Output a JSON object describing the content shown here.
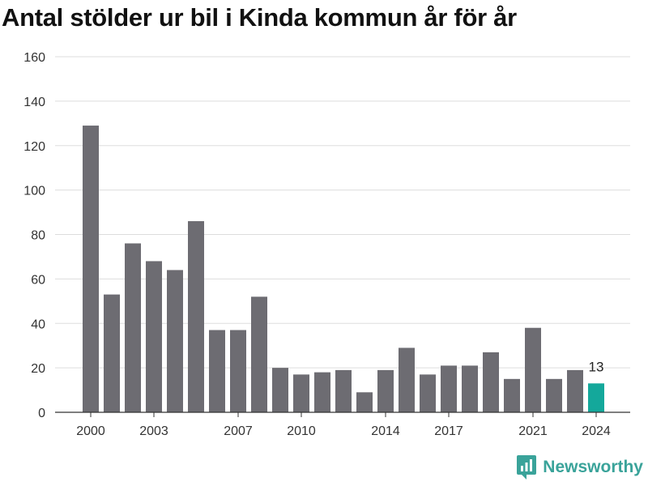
{
  "chart_data": {
    "type": "bar",
    "title": "Antal stölder ur bil i Kinda kommun år för år",
    "xlabel": "",
    "ylabel": "",
    "categories": [
      "2000",
      "2001",
      "2002",
      "2003",
      "2004",
      "2005",
      "2006",
      "2007",
      "2008",
      "2009",
      "2010",
      "2011",
      "2012",
      "2013",
      "2014",
      "2015",
      "2016",
      "2017",
      "2018",
      "2019",
      "2020",
      "2021",
      "2022",
      "2023",
      "2024"
    ],
    "values": [
      129,
      53,
      76,
      68,
      64,
      86,
      37,
      37,
      52,
      20,
      17,
      18,
      19,
      9,
      19,
      29,
      17,
      21,
      21,
      27,
      15,
      38,
      15,
      19,
      13
    ],
    "x_tick_labels": [
      "2000",
      "2003",
      "2007",
      "2010",
      "2014",
      "2017",
      "2021",
      "2024"
    ],
    "y_ticks": [
      "0",
      "20",
      "40",
      "60",
      "80",
      "100",
      "120",
      "140",
      "160"
    ],
    "ylim": [
      0,
      160
    ],
    "grid": true,
    "highlight": {
      "category": "2024",
      "label": "13"
    },
    "colors": {
      "bar": "#6d6c72",
      "highlight": "#14a89b",
      "grid": "#dddddd",
      "axis": "#333333"
    }
  },
  "brand": {
    "name": "Newsworthy",
    "icon": "newsworthy-logo-icon",
    "color": "#3aa39a"
  }
}
